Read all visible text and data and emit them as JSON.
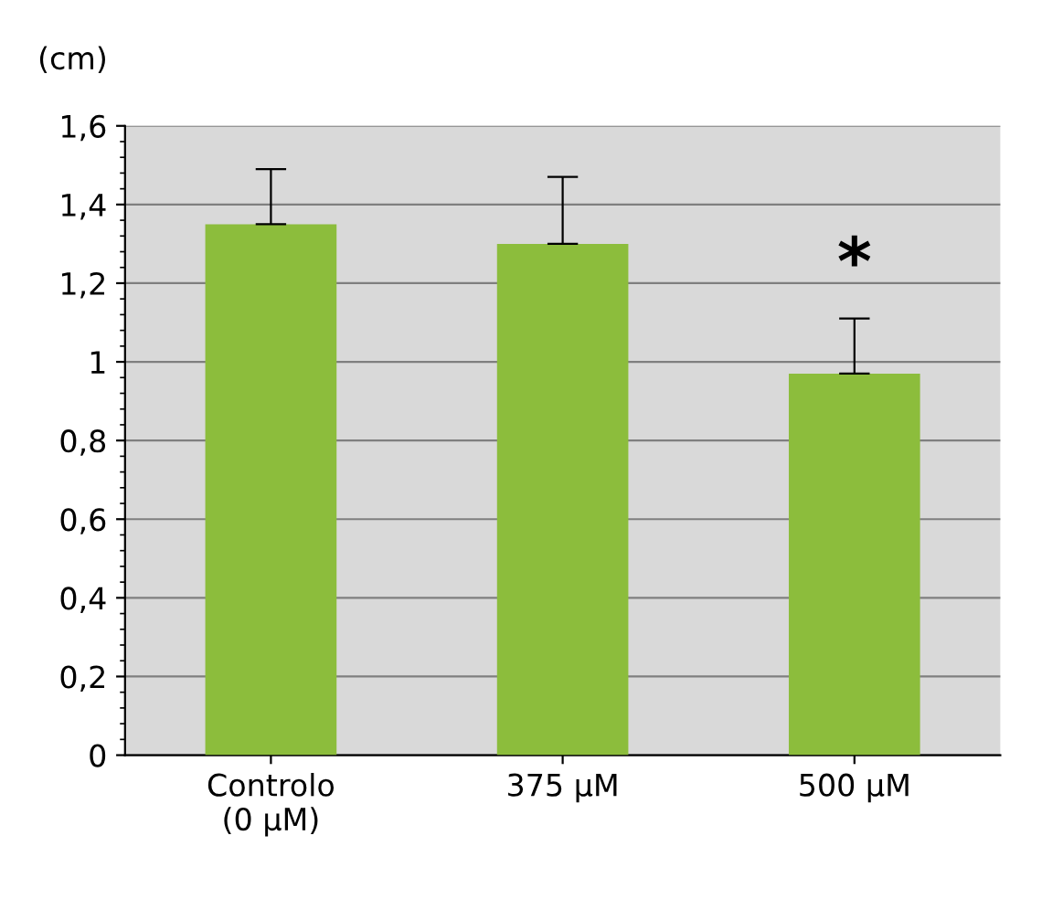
{
  "chart_data": {
    "type": "bar",
    "ylabel": "(cm)",
    "categories": [
      "Controlo\n(0 µM)",
      "375 µM",
      "500 µM"
    ],
    "values": [
      1.35,
      1.3,
      0.97
    ],
    "errors": [
      [
        1.35,
        1.49
      ],
      [
        1.3,
        1.47
      ],
      [
        0.97,
        1.11
      ]
    ],
    "color": "#8cbd3c",
    "ylim": [
      0,
      1.6
    ],
    "yticks": [
      0,
      {
        "value": 0.2,
        "label": "0,2"
      },
      {
        "value": 0.4,
        "label": "0,4"
      },
      {
        "value": 0.6,
        "label": "0,6"
      },
      {
        "value": 0.8,
        "label": "0,8"
      },
      1,
      {
        "value": 1.2,
        "label": "1,2"
      },
      {
        "value": 1.4,
        "label": "1,4"
      },
      {
        "value": 1.6,
        "label": "1,6"
      }
    ],
    "grid": "y",
    "annotations": [
      "*"
    ]
  }
}
